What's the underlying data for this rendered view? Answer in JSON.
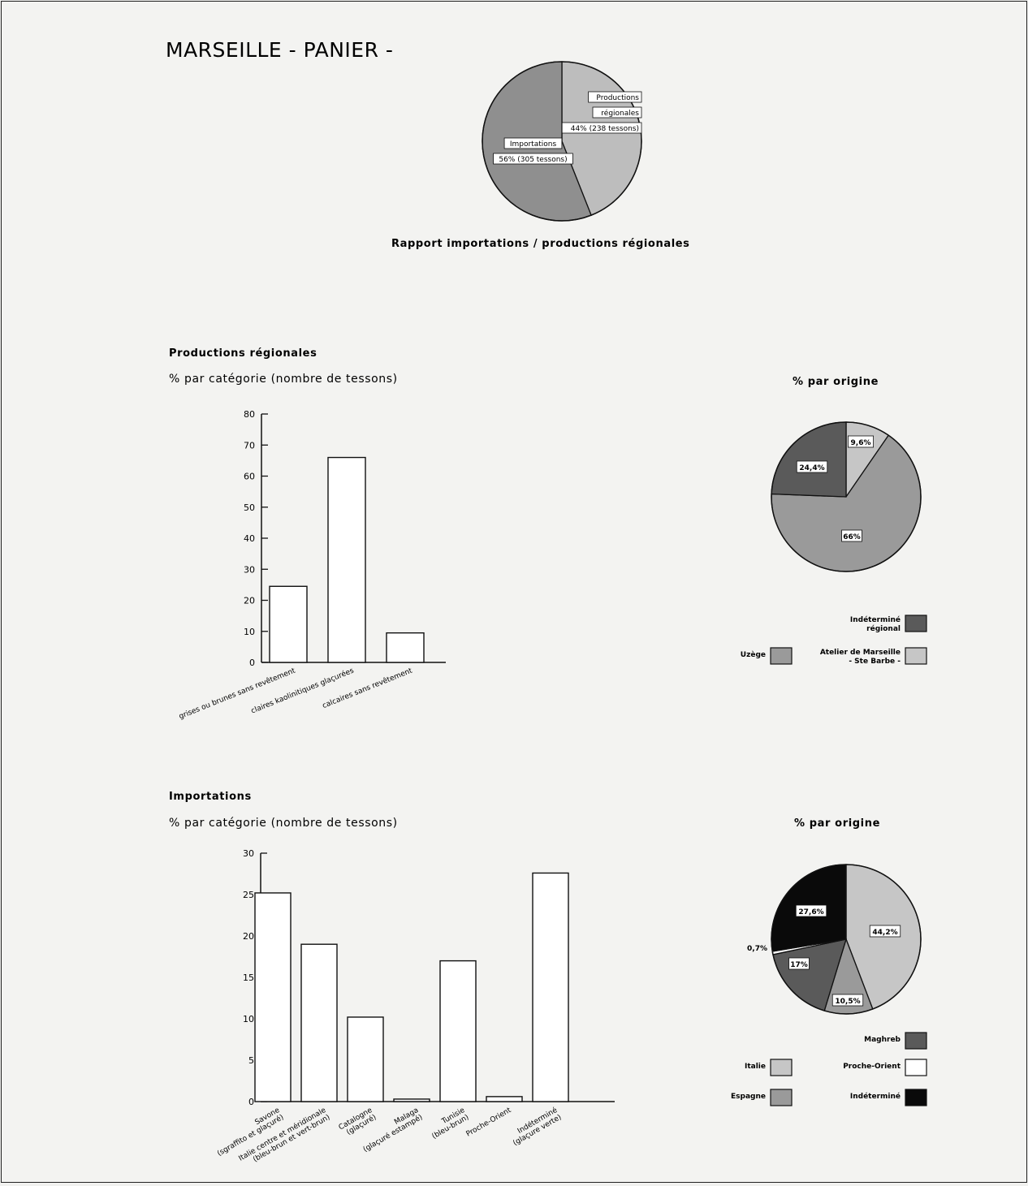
{
  "page": {
    "title": "MARSEILLE - PANIER -",
    "colors": {
      "background": "#f3f3f1",
      "ink": "#111111",
      "light_gray": "#c6c6c6",
      "mid_gray": "#9a9a9a",
      "dark_gray": "#5a5a5a",
      "black": "#0a0a0a",
      "white": "#ffffff"
    }
  },
  "chart_data": [
    {
      "type": "pie",
      "title": "Rapport importations / productions régionales",
      "series": [
        {
          "name": "Productions régionales",
          "value": 44,
          "label_lines": [
            "Productions",
            "régionales",
            "44% (238 tessons)"
          ]
        },
        {
          "name": "Importations",
          "value": 56,
          "label_lines": [
            "Importations",
            "56% (305 tessons)"
          ]
        }
      ]
    },
    {
      "type": "bar",
      "section_title": "Productions régionales",
      "title": "% par catégorie (nombre de tessons)",
      "ylim": [
        0,
        80
      ],
      "yticks": [
        0,
        10,
        20,
        30,
        40,
        50,
        60,
        70,
        80
      ],
      "categories": [
        [
          "grises ou brunes sans revêtement"
        ],
        [
          "claires kaolinitiques glaçurées"
        ],
        [
          "calcaires sans revêtement"
        ]
      ],
      "values": [
        24.5,
        66,
        9.5
      ]
    },
    {
      "type": "pie",
      "title": "% par origine",
      "series": [
        {
          "name": "Atelier de Marseille - Ste Barbe -",
          "value": 9.6,
          "label": "9,6%",
          "color": "light_gray"
        },
        {
          "name": "Uzège",
          "value": 66,
          "label": "66%",
          "color": "mid_gray"
        },
        {
          "name": "Indéterminé régional",
          "value": 24.4,
          "label": "24,4%",
          "color": "dark_gray"
        }
      ],
      "legend": [
        {
          "lines": [
            "Indéterminé",
            "régional"
          ],
          "color": "dark_gray"
        },
        {
          "lines": [
            "Uzège"
          ],
          "color": "mid_gray"
        },
        {
          "lines": [
            "Atelier de Marseille",
            "- Ste Barbe -"
          ],
          "color": "light_gray"
        }
      ]
    },
    {
      "type": "bar",
      "section_title": "Importations",
      "title": "% par catégorie (nombre de tessons)",
      "ylim": [
        0,
        30
      ],
      "yticks": [
        0,
        5,
        10,
        15,
        20,
        25,
        30
      ],
      "categories": [
        [
          "Savone",
          "(sgraffito et glaçuré)"
        ],
        [
          "Italie centre et méridionale",
          "(bleu-brun et vert-brun)"
        ],
        [
          "Catalogne",
          "(glaçuré)"
        ],
        [
          "Malaga",
          "(glaçuré estampé)"
        ],
        [
          "Tunisie",
          "(bleu-brun)"
        ],
        [
          "Proche-Orient"
        ],
        [
          "Indéterminé",
          "(glaçure verte)"
        ]
      ],
      "values": [
        25.2,
        19,
        10.2,
        0.3,
        17,
        0.6,
        27.6
      ]
    },
    {
      "type": "pie",
      "title": "% par origine",
      "series": [
        {
          "name": "Italie",
          "value": 44.2,
          "label": "44,2%",
          "color": "light_gray"
        },
        {
          "name": "Espagne",
          "value": 10.5,
          "label": "10,5%",
          "color": "mid_gray"
        },
        {
          "name": "Maghreb",
          "value": 17,
          "label": "17%",
          "color": "dark_gray"
        },
        {
          "name": "Proche-Orient",
          "value": 0.7,
          "label": "0,7%",
          "color": "white"
        },
        {
          "name": "Indéterminé",
          "value": 27.6,
          "label": "27,6%",
          "color": "black"
        }
      ],
      "legend": [
        {
          "lines": [
            "Maghreb"
          ],
          "color": "dark_gray"
        },
        {
          "lines": [
            "Italie"
          ],
          "color": "light_gray"
        },
        {
          "lines": [
            "Proche-Orient"
          ],
          "color": "white"
        },
        {
          "lines": [
            "Espagne"
          ],
          "color": "mid_gray"
        },
        {
          "lines": [
            "Indéterminé"
          ],
          "color": "black"
        }
      ]
    }
  ]
}
